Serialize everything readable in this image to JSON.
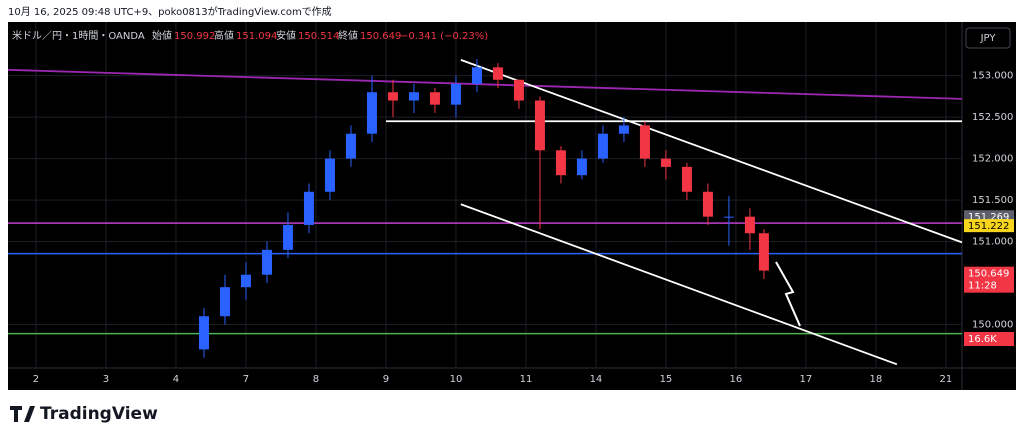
{
  "header": {
    "caption": "10月 16, 2025 09:48 UTC+9、poko0813がTradingView.comで作成"
  },
  "legend": {
    "symbol": "米ドル／円・1時間・OANDA",
    "open_label": "始値",
    "open": "150.992",
    "high_label": "高値",
    "high": "151.094",
    "low_label": "安値",
    "low": "150.514",
    "close_label": "終値",
    "close": "150.649",
    "change": "−0.341 (−0.23%)"
  },
  "currency_button": "JPY",
  "price_tags": [
    {
      "label": "151.269",
      "value": 151.269,
      "color": "#5d606b"
    },
    {
      "label": "151.222",
      "value": 151.222,
      "color": "#f7d51d"
    },
    {
      "label": "150.649",
      "value": 150.649,
      "color": "#f23645"
    }
  ],
  "countdown": "11:28",
  "volume_tag": "16.6K",
  "logo": "TradingView",
  "chart_data": {
    "type": "candlestick",
    "up_color": "#2962ff",
    "down_color": "#f23645",
    "ylim": [
      149.5,
      153.55
    ],
    "yticks": [
      {
        "value": 153,
        "label": "153.000"
      },
      {
        "value": 152.5,
        "label": "152.500"
      },
      {
        "value": 152,
        "label": "152.000"
      },
      {
        "value": 151.5,
        "label": "151.500"
      },
      {
        "value": 151,
        "label": "151.000"
      },
      {
        "value": 150,
        "label": "150.000"
      }
    ],
    "xlim": [
      -0.4,
      13.23
    ],
    "xticks": [
      {
        "value": 0,
        "label": "2"
      },
      {
        "value": 1,
        "label": "3"
      },
      {
        "value": 2,
        "label": "4"
      },
      {
        "value": 3,
        "label": "7"
      },
      {
        "value": 4,
        "label": "8"
      },
      {
        "value": 5,
        "label": "9"
      },
      {
        "value": 6,
        "label": "10"
      },
      {
        "value": 7,
        "label": "11"
      },
      {
        "value": 8,
        "label": "14"
      },
      {
        "value": 9,
        "label": "15"
      },
      {
        "value": 10,
        "label": "16"
      },
      {
        "value": 11,
        "label": "17"
      },
      {
        "value": 12,
        "label": "18"
      },
      {
        "value": 13,
        "label": "21"
      }
    ],
    "x": [
      2.4,
      2.7,
      3.0,
      3.3,
      3.6,
      3.9,
      4.2,
      4.5,
      4.8,
      5.1,
      5.4,
      5.7,
      6.0,
      6.3,
      6.6,
      6.9,
      7.2,
      7.5,
      7.8,
      8.1,
      8.4,
      8.7,
      9.0,
      9.3,
      9.6,
      9.9,
      10.2,
      10.4
    ],
    "open": [
      149.7,
      150.1,
      150.45,
      150.6,
      150.9,
      151.2,
      151.6,
      152.0,
      152.3,
      152.8,
      152.7,
      152.8,
      152.65,
      152.9,
      153.1,
      152.95,
      152.7,
      152.1,
      151.8,
      152.0,
      152.3,
      152.4,
      152.0,
      151.9,
      151.6,
      151.3,
      151.3,
      151.1
    ],
    "high": [
      150.2,
      150.6,
      150.75,
      151.0,
      151.35,
      151.7,
      152.1,
      152.4,
      153.0,
      152.95,
      152.9,
      152.85,
      153.0,
      153.2,
      153.15,
      152.95,
      152.75,
      152.15,
      152.1,
      152.4,
      152.5,
      152.45,
      152.1,
      151.95,
      151.7,
      151.55,
      151.4,
      151.15
    ],
    "low": [
      149.6,
      150.0,
      150.3,
      150.5,
      150.8,
      151.1,
      151.5,
      151.9,
      152.2,
      152.5,
      152.55,
      152.55,
      152.5,
      152.8,
      152.85,
      152.6,
      151.15,
      151.7,
      151.75,
      151.95,
      152.2,
      151.9,
      151.75,
      151.5,
      151.2,
      150.95,
      150.9,
      150.55
    ],
    "close": [
      150.1,
      150.45,
      150.6,
      150.9,
      151.2,
      151.6,
      152.0,
      152.3,
      152.8,
      152.7,
      152.8,
      152.65,
      152.9,
      153.1,
      152.95,
      152.7,
      152.1,
      151.8,
      152.0,
      152.3,
      152.4,
      152.0,
      151.9,
      151.6,
      151.3,
      151.3,
      151.1,
      150.65
    ],
    "levels": [
      {
        "value": 151.222,
        "color": "#c13fd0"
      },
      {
        "value": 150.855,
        "color": "#2962ff"
      },
      {
        "value": 149.89,
        "color": "#4caf50"
      }
    ],
    "trendlines": [
      {
        "color": "#9c27b0",
        "x": [
          -0.4,
          13.23
        ],
        "y": [
          153.07,
          152.72
        ]
      },
      {
        "color": "#ffffff",
        "x": [
          5.0,
          13.23
        ],
        "y": [
          152.45,
          152.45
        ]
      },
      {
        "color": "#ffffff",
        "x": [
          6.07,
          13.23
        ],
        "y": [
          153.19,
          150.99
        ]
      },
      {
        "color": "#ffffff",
        "x": [
          6.07,
          12.3
        ],
        "y": [
          151.45,
          149.52
        ]
      }
    ]
  }
}
